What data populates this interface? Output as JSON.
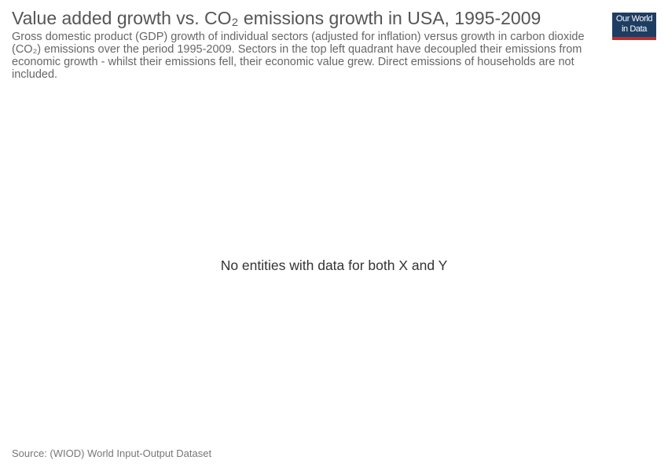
{
  "header": {
    "title": "Value added growth vs. CO₂ emissions growth in USA, 1995-2009",
    "subtitle": "Gross domestic product (GDP) growth of individual sectors (adjusted for inflation) versus growth in carbon dioxide (CO₂) emissions over the period 1995-2009. Sectors in the top left quadrant have decoupled their emissions from economic growth - whilst their emissions fell, their economic value grew. Direct emissions of households are not included."
  },
  "logo": {
    "line1": "Our World",
    "line2": "in Data"
  },
  "chart_data": {
    "type": "scatter",
    "title": "Value added growth vs. CO₂ emissions growth in USA, 1995-2009",
    "series": [],
    "empty_message": "No entities with data for both X and Y"
  },
  "footer": {
    "source": "Source: (WIOD) World Input-Output Dataset"
  },
  "colors": {
    "logo_background": "#1d3d63",
    "logo_accent": "#ce261e",
    "title_text": "#555555",
    "body_text": "#666666"
  }
}
